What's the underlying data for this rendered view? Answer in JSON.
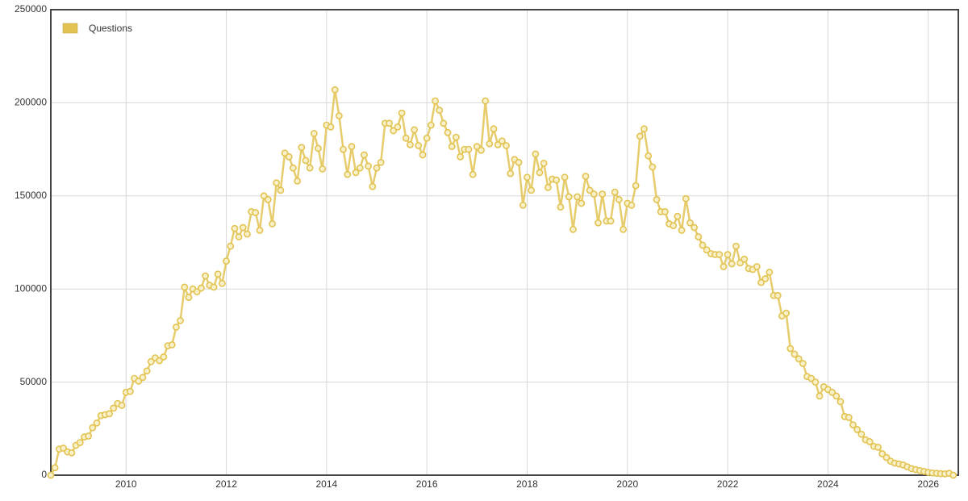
{
  "chart_data": {
    "type": "line",
    "x": [
      2008.5,
      2008.583,
      2008.667,
      2008.75,
      2008.833,
      2008.917,
      2009,
      2009.083,
      2009.167,
      2009.25,
      2009.333,
      2009.417,
      2009.5,
      2009.583,
      2009.667,
      2009.75,
      2009.833,
      2009.917,
      2010,
      2010.083,
      2010.167,
      2010.25,
      2010.333,
      2010.417,
      2010.5,
      2010.583,
      2010.667,
      2010.75,
      2010.833,
      2010.917,
      2011,
      2011.083,
      2011.167,
      2011.25,
      2011.333,
      2011.417,
      2011.5,
      2011.583,
      2011.667,
      2011.75,
      2011.833,
      2011.917,
      2012,
      2012.083,
      2012.167,
      2012.25,
      2012.333,
      2012.417,
      2012.5,
      2012.583,
      2012.667,
      2012.75,
      2012.833,
      2012.917,
      2013,
      2013.083,
      2013.167,
      2013.25,
      2013.333,
      2013.417,
      2013.5,
      2013.583,
      2013.667,
      2013.75,
      2013.833,
      2013.917,
      2014,
      2014.083,
      2014.167,
      2014.25,
      2014.333,
      2014.417,
      2014.5,
      2014.583,
      2014.667,
      2014.75,
      2014.833,
      2014.917,
      2015,
      2015.083,
      2015.167,
      2015.25,
      2015.333,
      2015.417,
      2015.5,
      2015.583,
      2015.667,
      2015.75,
      2015.833,
      2015.917,
      2016,
      2016.083,
      2016.167,
      2016.25,
      2016.333,
      2016.417,
      2016.5,
      2016.583,
      2016.667,
      2016.75,
      2016.833,
      2016.917,
      2017,
      2017.083,
      2017.167,
      2017.25,
      2017.333,
      2017.417,
      2017.5,
      2017.583,
      2017.667,
      2017.75,
      2017.833,
      2017.917,
      2018,
      2018.083,
      2018.167,
      2018.25,
      2018.333,
      2018.417,
      2018.5,
      2018.583,
      2018.667,
      2018.75,
      2018.833,
      2018.917,
      2019,
      2019.083,
      2019.167,
      2019.25,
      2019.333,
      2019.417,
      2019.5,
      2019.583,
      2019.667,
      2019.75,
      2019.833,
      2019.917,
      2020,
      2020.083,
      2020.167,
      2020.25,
      2020.333,
      2020.417,
      2020.5,
      2020.583,
      2020.667,
      2020.75,
      2020.833,
      2020.917,
      2021,
      2021.083,
      2021.167,
      2021.25,
      2021.333,
      2021.417,
      2021.5,
      2021.583,
      2021.667,
      2021.75,
      2021.833,
      2021.917,
      2022,
      2022.083,
      2022.167,
      2022.25,
      2022.333,
      2022.417,
      2022.5,
      2022.583,
      2022.667,
      2022.75,
      2022.833,
      2022.917,
      2023,
      2023.083,
      2023.167,
      2023.25,
      2023.333,
      2023.417,
      2023.5,
      2023.583,
      2023.667,
      2023.75,
      2023.833,
      2023.917,
      2024,
      2024.083,
      2024.167,
      2024.25,
      2024.333,
      2024.417,
      2024.5,
      2024.583,
      2024.667,
      2024.75,
      2024.833,
      2024.917,
      2025,
      2025.083,
      2025.167,
      2025.25,
      2025.333,
      2025.417,
      2025.5,
      2025.583,
      2025.667,
      2025.75,
      2025.833,
      2025.917,
      2026,
      2026.083,
      2026.167,
      2026.25,
      2026.333,
      2026.417,
      2026.5
    ],
    "series": [
      {
        "name": "Questions",
        "color": "#e2c352",
        "values": [
          0,
          4000,
          14000,
          14500,
          12500,
          12000,
          16000,
          17500,
          20500,
          21000,
          25500,
          28000,
          32000,
          32500,
          33000,
          36000,
          38500,
          37500,
          44500,
          45000,
          52000,
          50500,
          52500,
          56000,
          61000,
          63000,
          61500,
          63500,
          69500,
          70000,
          79500,
          83000,
          101000,
          95500,
          100000,
          98500,
          100500,
          107000,
          102000,
          101000,
          108000,
          103000,
          115000,
          123000,
          132500,
          128000,
          133000,
          129500,
          141500,
          141000,
          131500,
          150000,
          148000,
          135000,
          157000,
          153000,
          173000,
          171000,
          165000,
          158000,
          176000,
          169000,
          165000,
          183500,
          175500,
          164500,
          188000,
          187000,
          207000,
          193000,
          175000,
          161500,
          176500,
          162500,
          165000,
          172000,
          166000,
          155000,
          165000,
          168000,
          189000,
          189000,
          185000,
          187000,
          194500,
          181000,
          177500,
          185500,
          177000,
          172000,
          181000,
          188000,
          201000,
          196000,
          189000,
          184000,
          176500,
          181500,
          171000,
          175000,
          175000,
          161500,
          176500,
          174500,
          201000,
          178000,
          186000,
          177500,
          179500,
          177000,
          162000,
          169500,
          168000,
          145000,
          160000,
          153000,
          172500,
          162500,
          167500,
          154500,
          159000,
          158500,
          144000,
          160000,
          149500,
          132000,
          149500,
          146000,
          160500,
          153000,
          151000,
          135500,
          151000,
          136500,
          136500,
          152000,
          148000,
          132000,
          146000,
          145000,
          155500,
          182000,
          186000,
          171500,
          165500,
          148000,
          141500,
          141500,
          135000,
          134000,
          139000,
          131500,
          148500,
          135500,
          133000,
          128000,
          123500,
          121000,
          119000,
          118500,
          118500,
          112000,
          118500,
          113500,
          123000,
          114000,
          116000,
          111000,
          110500,
          112000,
          103500,
          105500,
          109000,
          96500,
          96500,
          85500,
          87000,
          68000,
          65000,
          62500,
          60000,
          53000,
          52000,
          50000,
          42500,
          47500,
          46000,
          44500,
          42500,
          39500,
          31500,
          31000,
          27000,
          24500,
          22000,
          19000,
          18000,
          15500,
          15000,
          11500,
          9500,
          7500,
          6500,
          6000,
          5500,
          4500,
          3500,
          3000,
          2500,
          2000,
          1500,
          1200,
          1000,
          800,
          700,
          1000,
          0
        ]
      }
    ],
    "xlim": [
      2008.5,
      2026.6
    ],
    "xticks": [
      2010,
      2012,
      2014,
      2016,
      2018,
      2020,
      2022,
      2024,
      2026
    ],
    "ylim": [
      0,
      250000
    ],
    "yticks": [
      0,
      50000,
      100000,
      150000,
      200000,
      250000
    ],
    "grid": true,
    "legend": "top-left"
  }
}
